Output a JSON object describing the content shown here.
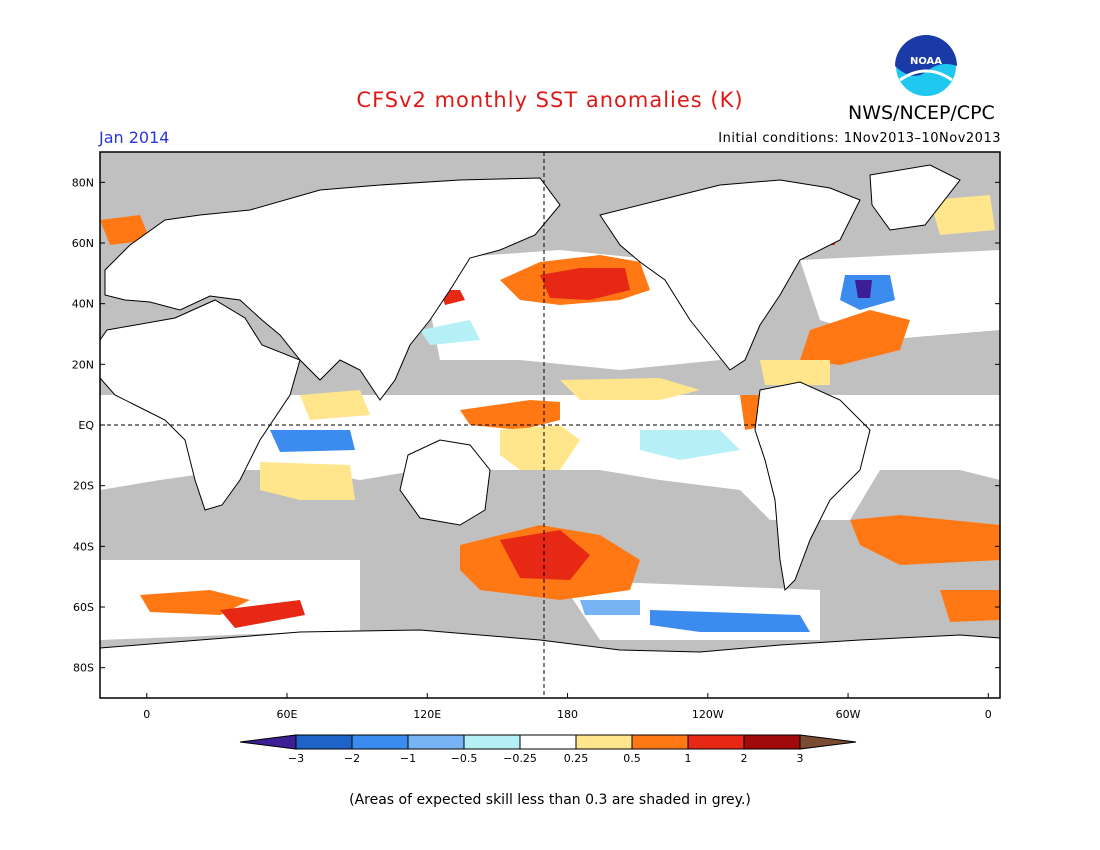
{
  "title": "CFSv2 monthly SST anomalies (K)",
  "agency": "NWS/NCEP/CPC",
  "logo_text": "NOAA",
  "period": "Jan 2014",
  "initial_conditions": "Initial conditions: 1Nov2013–10Nov2013",
  "footnote": "(Areas of expected skill less than 0.3 are shaded in grey.)",
  "map": {
    "lat_labels": [
      "80N",
      "60N",
      "40N",
      "20N",
      "EQ",
      "20S",
      "40S",
      "60S",
      "80S"
    ],
    "lat_values": [
      80,
      60,
      40,
      20,
      0,
      -20,
      -40,
      -60,
      -80
    ],
    "lon_labels": [
      "0",
      "60E",
      "120E",
      "180",
      "120W",
      "60W",
      "0"
    ],
    "lon_values": [
      0,
      60,
      120,
      180,
      240,
      300,
      360
    ],
    "lon_range": [
      -20,
      365
    ],
    "lat_range": [
      -90,
      90
    ],
    "land_color": "#ffffff",
    "low_skill_color": "#c0c0c0"
  },
  "colorbar": {
    "labels": [
      "−3",
      "−2",
      "−1",
      "−0.5",
      "−0.25",
      "0.25",
      "0.5",
      "1",
      "2",
      "3"
    ],
    "colors": [
      "#3c1e96",
      "#1e64c8",
      "#3c8cf0",
      "#78b4f5",
      "#b4f0f5",
      "#ffffff",
      "#ffe68c",
      "#ff7814",
      "#e62814",
      "#a00a0a",
      "#7b4a32"
    ]
  },
  "colors": {
    "title": "#e01818",
    "period": "#2a36d8",
    "noaa_blue": "#1a3aa8",
    "noaa_cyan": "#20c8f0"
  }
}
